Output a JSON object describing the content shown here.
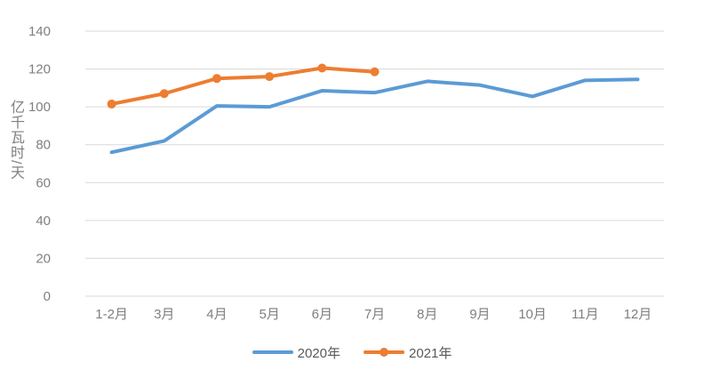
{
  "chart_data": {
    "type": "line",
    "title": "",
    "xlabel": "",
    "ylabel": "亿千瓦时/天",
    "categories": [
      "1-2月",
      "3月",
      "4月",
      "5月",
      "6月",
      "7月",
      "8月",
      "9月",
      "10月",
      "11月",
      "12月"
    ],
    "series": [
      {
        "name": "2020年",
        "color": "#5B9BD5",
        "marker": false,
        "values": [
          76,
          82,
          100.5,
          100,
          108.5,
          107.5,
          113.5,
          111.5,
          105.5,
          114,
          114.5
        ]
      },
      {
        "name": "2021年",
        "color": "#ED7D31",
        "marker": true,
        "values": [
          101.5,
          107,
          115,
          116,
          120.5,
          118.5
        ]
      }
    ],
    "ylim": [
      0,
      140
    ],
    "yticks": [
      0,
      20,
      40,
      60,
      80,
      100,
      120,
      140
    ],
    "grid": true,
    "legend_position": "bottom",
    "axis_text_color": "#7F7F7F",
    "gridline_color": "#D9D9D9"
  }
}
